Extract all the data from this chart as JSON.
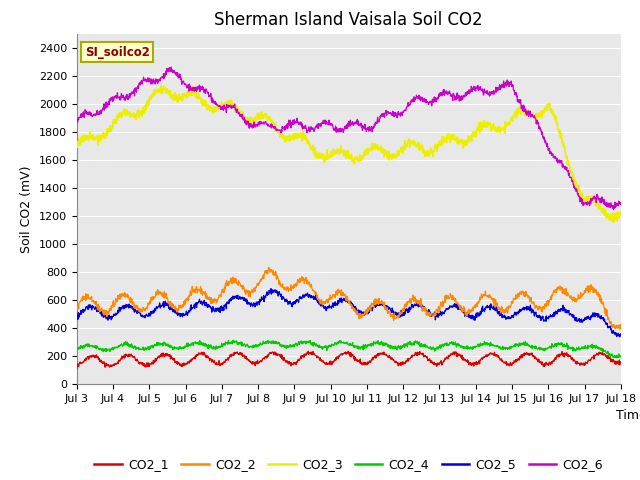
{
  "title": "Sherman Island Vaisala Soil CO2",
  "ylabel": "Soil CO2 (mV)",
  "xlabel": "Time",
  "legend_label": "SI_soilco2",
  "ylim": [
    0,
    2500
  ],
  "yticks": [
    0,
    200,
    400,
    600,
    800,
    1000,
    1200,
    1400,
    1600,
    1800,
    2000,
    2200,
    2400
  ],
  "x_labels": [
    "Jul 3",
    "Jul 4",
    "Jul 5",
    "Jul 6",
    "Jul 7",
    "Jul 8",
    "Jul 9",
    "Jul 10",
    "Jul 11",
    "Jul 12",
    "Jul 13",
    "Jul 14",
    "Jul 15",
    "Jul 16",
    "Jul 17",
    "Jul 18"
  ],
  "colors": {
    "CO2_1": "#dd0000",
    "CO2_2": "#ff8800",
    "CO2_3": "#eeee00",
    "CO2_4": "#00cc00",
    "CO2_5": "#0000dd",
    "CO2_6": "#cc00cc"
  },
  "background_color": "#e8e8e8",
  "fig_background": "#ffffff",
  "grid_color": "#ffffff",
  "title_fontsize": 12,
  "label_fontsize": 9,
  "tick_fontsize": 8
}
